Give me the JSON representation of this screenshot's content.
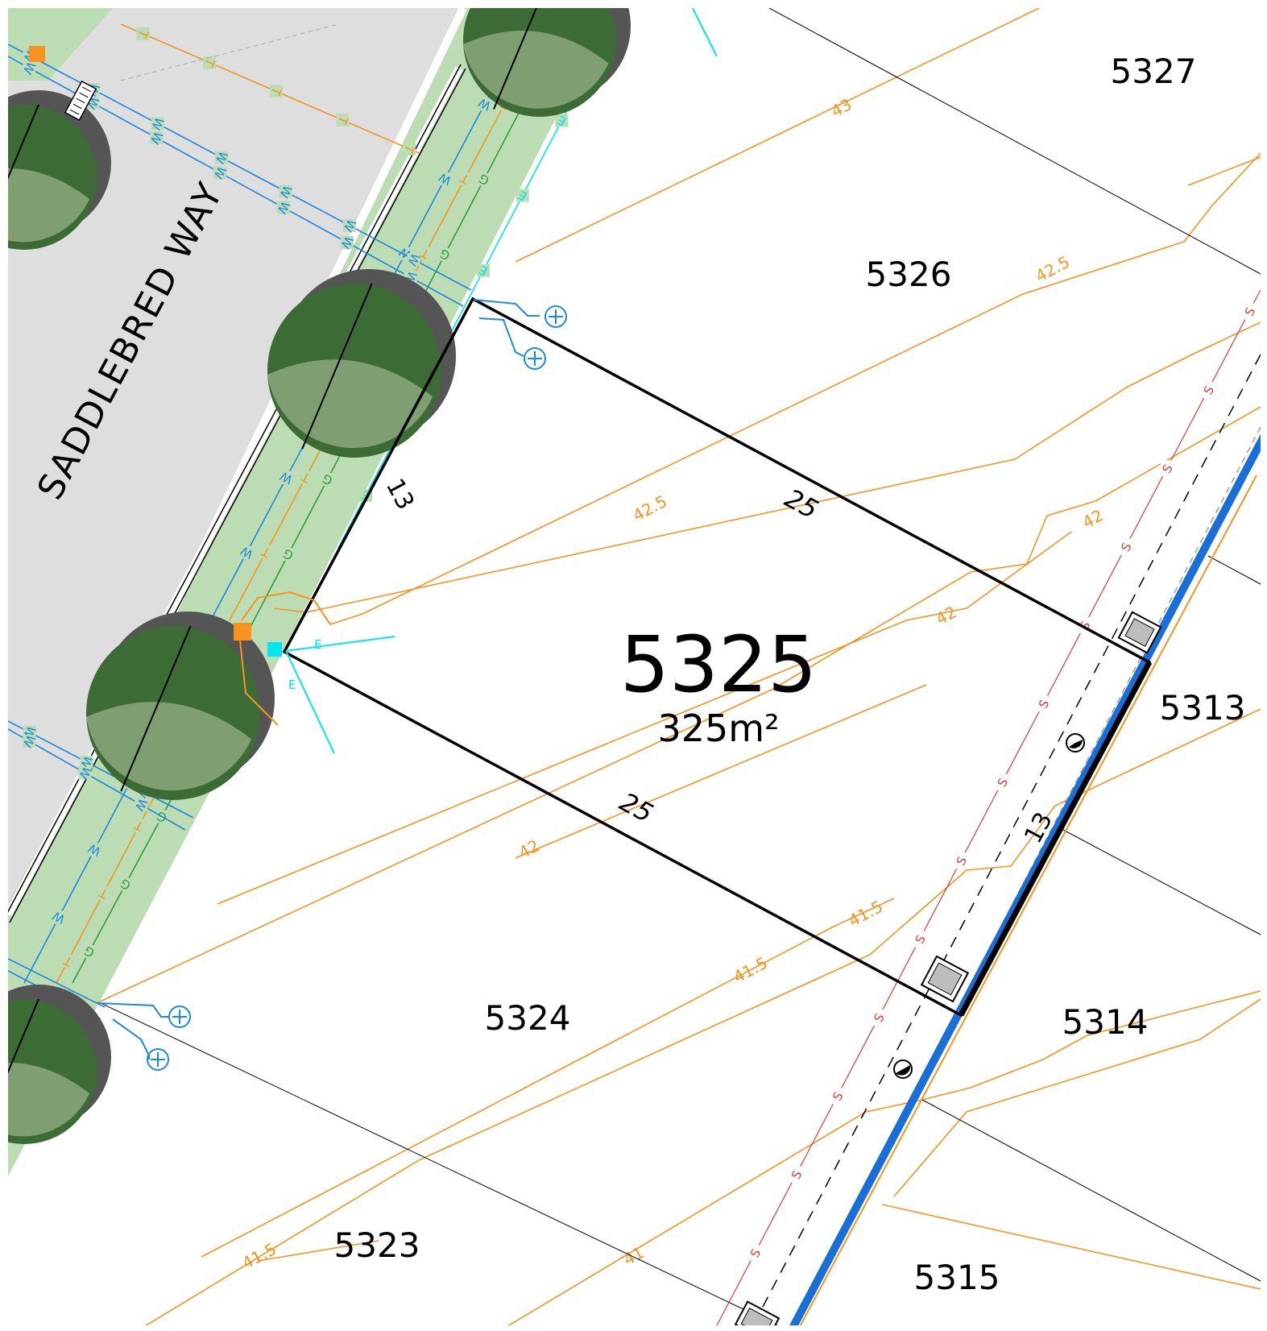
{
  "street": {
    "name": "SADDLEBRED WAY"
  },
  "main_lot": {
    "number": "5325",
    "area": "325m²",
    "frontage": "13",
    "rear": "13",
    "side_north": "25",
    "side_south": "25"
  },
  "neighbour_lots": [
    {
      "number": "5327"
    },
    {
      "number": "5326"
    },
    {
      "number": "5324"
    },
    {
      "number": "5323"
    },
    {
      "number": "5313"
    },
    {
      "number": "5314"
    },
    {
      "number": "5315"
    }
  ],
  "contours": {
    "l43": "43",
    "l425": "42.5",
    "l42": "42",
    "l415": "41.5",
    "l41": "41"
  },
  "services": {
    "water": "W",
    "telecom": "T",
    "gas": "G",
    "electric": "E",
    "sewer": "S"
  },
  "colors": {
    "road": "#dedede",
    "verge": "#bcdcb3",
    "tree_dark": "#3c6b36",
    "tree_light": "#86a57a",
    "tree_shadow": "#555555",
    "water": "#1e88e5",
    "telecom": "#f7931e",
    "gas": "#2e9e3e",
    "electric": "#00e5ee",
    "sewer": "#e53935",
    "contour": "#f7931e",
    "boundary": "#000000",
    "drain": "#1a6fd6"
  }
}
